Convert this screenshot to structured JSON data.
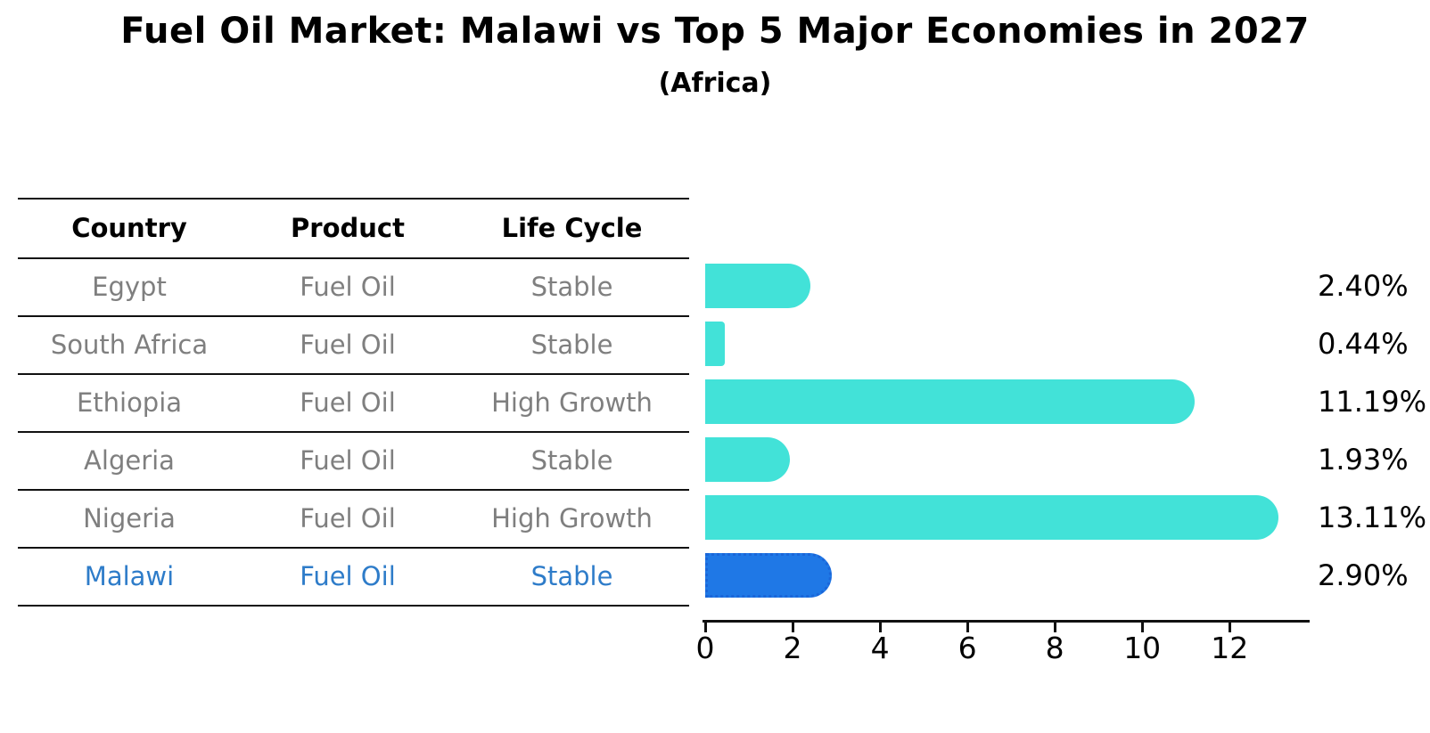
{
  "chart_data": {
    "type": "bar",
    "orientation": "horizontal",
    "title": "Fuel Oil Market: Malawi vs Top 5 Major Economies in 2027",
    "subtitle": "(Africa)",
    "categories": [
      "Egypt",
      "South Africa",
      "Ethiopia",
      "Algeria",
      "Nigeria",
      "Malawi"
    ],
    "values": [
      2.4,
      0.44,
      11.19,
      1.93,
      13.11,
      2.9
    ],
    "value_labels": [
      "2.40%",
      "0.44%",
      "11.19%",
      "1.93%",
      "13.11%",
      "2.90%"
    ],
    "x_ticks": [
      0,
      2,
      4,
      6,
      8,
      10,
      12
    ],
    "xlim": [
      0,
      13.77
    ],
    "grid": false,
    "legend": false,
    "bar_color": "#42e2d8",
    "highlight_index": 5,
    "highlight_color": "#1f78e6",
    "highlight_edge_color": "#1a66d9",
    "highlight_edge_style": "dotted"
  },
  "table": {
    "columns": [
      "Country",
      "Product",
      "Life Cycle"
    ],
    "rows": [
      {
        "country": "Egypt",
        "product": "Fuel Oil",
        "life_cycle": "Stable",
        "highlight": false
      },
      {
        "country": "South Africa",
        "product": "Fuel Oil",
        "life_cycle": "Stable",
        "highlight": false
      },
      {
        "country": "Ethiopia",
        "product": "Fuel Oil",
        "life_cycle": "High Growth",
        "highlight": false
      },
      {
        "country": "Algeria",
        "product": "Fuel Oil",
        "life_cycle": "Stable",
        "highlight": false
      },
      {
        "country": "Nigeria",
        "product": "Fuel Oil",
        "life_cycle": "High Growth",
        "highlight": false
      },
      {
        "country": "Malawi",
        "product": "Fuel Oil",
        "life_cycle": "Stable",
        "highlight": true
      }
    ],
    "text_color": "#7f7f7f",
    "highlight_text_color": "#2e7cc9",
    "header_text_color": "#000000",
    "line_color": "#111111"
  }
}
